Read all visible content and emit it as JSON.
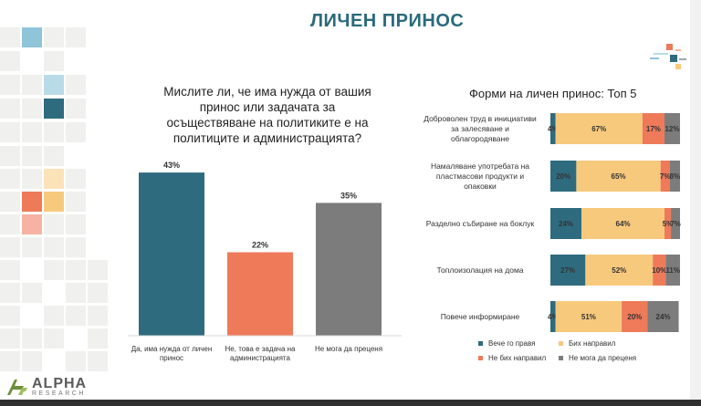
{
  "header": {
    "title": "ЛИЧЕН ПРИНОС"
  },
  "colors": {
    "teal": "#2f6b7e",
    "orange": "#ee7a5a",
    "gray": "#7d7c7d",
    "yellow": "#f7c97d",
    "accent_title": "#2a6a7c"
  },
  "logo": {
    "name": "ALPHA",
    "sub": "RESEARCH"
  },
  "chart_data": [
    {
      "type": "bar",
      "title": "Мислите ли, че има нужда от вашия принос или задачата за осъществяване на политиките е на политиците и администрацията?",
      "categories": [
        "Да, има нужда от личен принос",
        "Не, това е задача на администрацията",
        "Не мога да преценя"
      ],
      "values": [
        43,
        22,
        35
      ],
      "value_labels": [
        "43%",
        "22%",
        "35%"
      ],
      "colors": [
        "#2f6b7e",
        "#ee7a5a",
        "#7d7c7d"
      ],
      "ylim": [
        0,
        50
      ],
      "xlabel": "",
      "ylabel": ""
    },
    {
      "type": "bar",
      "orientation": "horizontal",
      "stacked": true,
      "title": "Форми на личен принос: Топ 5",
      "categories": [
        "Доброволен труд в инициативи за залесяване и облагородяване",
        "Намаляване употребата на пластмасови продукти и опаковки",
        "Разделно събиране на боклук",
        "Топлоизолация на дома",
        "Повече информиране"
      ],
      "series": [
        {
          "name": "Вече го правя",
          "color": "#2f6b7e",
          "values": [
            4,
            20,
            24,
            27,
            4
          ],
          "labels": [
            "4%",
            "20%",
            "24%",
            "27%",
            "4%"
          ]
        },
        {
          "name": "Бих направил",
          "color": "#f7c97d",
          "values": [
            67,
            65,
            64,
            52,
            51
          ],
          "labels": [
            "67%",
            "65%",
            "64%",
            "52%",
            "51%"
          ]
        },
        {
          "name": "Не бих направил",
          "color": "#ee7a5a",
          "values": [
            17,
            7,
            5,
            10,
            20
          ],
          "labels": [
            "17%",
            "7%",
            "5%",
            "10%",
            "20%"
          ]
        },
        {
          "name": "Не мога да преценя",
          "color": "#7d7c7d",
          "values": [
            12,
            8,
            7,
            11,
            24
          ],
          "labels": [
            "12%",
            "8%",
            "7%",
            "11%",
            "24%"
          ]
        }
      ],
      "xlim": [
        0,
        100
      ],
      "legend": "bottom"
    }
  ]
}
